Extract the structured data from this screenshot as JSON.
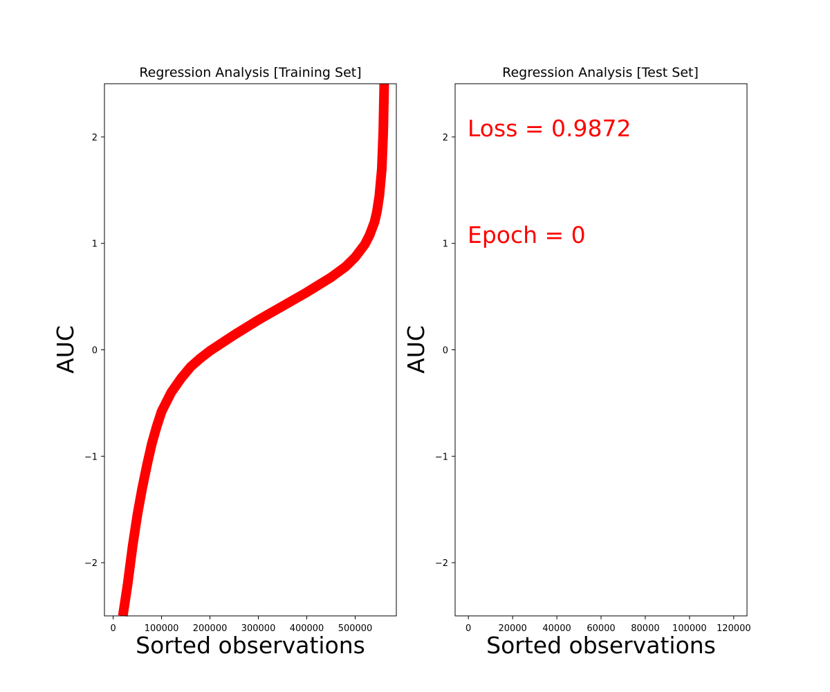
{
  "colors": {
    "series": "#ff0000",
    "annotation": "#ff0000",
    "axes": "#000000",
    "background": "#ffffff"
  },
  "chart_data": [
    {
      "type": "scatter",
      "title": "Regression Analysis [Training Set]",
      "xlabel": "Sorted observations",
      "ylabel": "AUC",
      "xlim": [
        -18000,
        585000
      ],
      "ylim": [
        -2.5,
        2.5
      ],
      "xticks": [
        0,
        100000,
        200000,
        300000,
        400000,
        500000
      ],
      "xtick_labels": [
        "0",
        "100000",
        "200000",
        "300000",
        "400000",
        "500000"
      ],
      "yticks": [
        -2,
        -1,
        0,
        1,
        2
      ],
      "ytick_labels": [
        "−2",
        "−1",
        "0",
        "1",
        "2"
      ],
      "grid": false,
      "series": [
        {
          "color": "#ff0000",
          "x": [
            20000,
            30000,
            40000,
            50000,
            60000,
            70000,
            80000,
            90000,
            100000,
            120000,
            140000,
            160000,
            180000,
            200000,
            250000,
            300000,
            350000,
            400000,
            450000,
            480000,
            500000,
            520000,
            530000,
            540000,
            545000,
            550000,
            555000,
            558000,
            560000
          ],
          "y": [
            -2.5,
            -2.2,
            -1.85,
            -1.55,
            -1.3,
            -1.08,
            -0.88,
            -0.72,
            -0.58,
            -0.4,
            -0.27,
            -0.16,
            -0.08,
            -0.01,
            0.14,
            0.28,
            0.41,
            0.54,
            0.68,
            0.78,
            0.87,
            0.99,
            1.08,
            1.2,
            1.3,
            1.45,
            1.7,
            2.05,
            2.5
          ]
        }
      ]
    },
    {
      "type": "scatter",
      "title": "Regression Analysis [Test Set]",
      "xlabel": "Sorted observations",
      "ylabel": "AUC",
      "xlim": [
        -6000,
        126000
      ],
      "ylim": [
        -2.5,
        2.5
      ],
      "xticks": [
        0,
        20000,
        40000,
        60000,
        80000,
        100000,
        120000
      ],
      "xtick_labels": [
        "0",
        "20000",
        "40000",
        "60000",
        "80000",
        "100000",
        "120000"
      ],
      "yticks": [
        -2,
        -1,
        0,
        1,
        2
      ],
      "ytick_labels": [
        "−2",
        "−1",
        "0",
        "1",
        "2"
      ],
      "grid": false,
      "series": [],
      "annotations": [
        "Loss = 0.9872",
        "Epoch = 0"
      ]
    }
  ]
}
